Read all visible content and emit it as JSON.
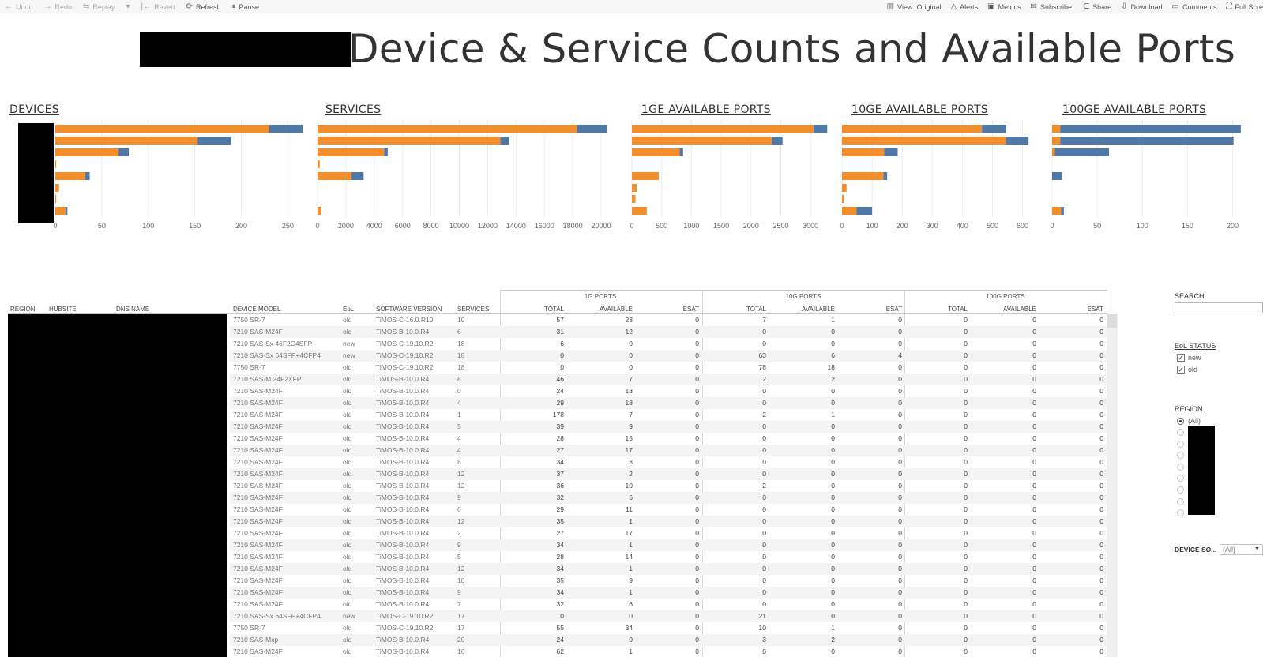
{
  "toolbar": {
    "left": [
      {
        "label": "Undo",
        "icon": "←",
        "disabled": true
      },
      {
        "label": "Redo",
        "icon": "→",
        "disabled": true
      },
      {
        "label": "Replay",
        "icon": "⇆",
        "disabled": true
      },
      {
        "label": "",
        "icon": "▾",
        "disabled": true
      },
      {
        "label": "Revert",
        "icon": "|←",
        "disabled": true
      },
      {
        "label": "Refresh",
        "icon": "⟳",
        "disabled": false
      },
      {
        "label": "Pause",
        "icon": "⏸",
        "disabled": false
      }
    ],
    "right": [
      {
        "label": "View: Original",
        "icon": "▥"
      },
      {
        "label": "Alerts",
        "icon": "△"
      },
      {
        "label": "Metrics",
        "icon": "▣"
      },
      {
        "label": "Subscribe",
        "icon": "✉"
      },
      {
        "label": "Share",
        "icon": "⋲"
      },
      {
        "label": "Download",
        "icon": "⇩"
      },
      {
        "label": "Comments",
        "icon": "▭"
      },
      {
        "label": "Full Scre",
        "icon": "⛶"
      }
    ]
  },
  "title": "Device & Service Counts and Available Ports",
  "colors": {
    "orange": "#f28e2b",
    "blue": "#4e79a7",
    "grid": "#ececec"
  },
  "chart_data": [
    {
      "type": "bar",
      "title": "DEVICES",
      "orientation": "horizontal",
      "stacked": true,
      "xlim": [
        0,
        265
      ],
      "ticks": [
        0,
        50,
        100,
        150,
        200,
        250
      ],
      "series": [
        {
          "color": "#f28e2b",
          "values": [
            230,
            153,
            68,
            1,
            32,
            4,
            1,
            11
          ]
        },
        {
          "color": "#4e79a7",
          "values": [
            36,
            36,
            11,
            0,
            5,
            0,
            0,
            2
          ]
        }
      ]
    },
    {
      "type": "bar",
      "title": "SERVICES",
      "orientation": "horizontal",
      "stacked": true,
      "xlim": [
        0,
        20500
      ],
      "ticks": [
        0,
        2000,
        4000,
        6000,
        8000,
        10000,
        12000,
        14000,
        16000,
        18000,
        20000
      ],
      "series": [
        {
          "color": "#f28e2b",
          "values": [
            18300,
            12900,
            4700,
            150,
            2400,
            0,
            0,
            250
          ]
        },
        {
          "color": "#4e79a7",
          "values": [
            2100,
            600,
            250,
            0,
            850,
            0,
            0,
            0
          ]
        }
      ]
    },
    {
      "type": "bar",
      "title": "1GE AVAILABLE PORTS",
      "orientation": "horizontal",
      "stacked": true,
      "xlim": [
        0,
        3250
      ],
      "ticks": [
        0,
        500,
        1000,
        1500,
        2000,
        2500,
        3000
      ],
      "series": [
        {
          "color": "#f28e2b",
          "values": [
            3050,
            2350,
            800,
            0,
            450,
            80,
            60,
            250
          ]
        },
        {
          "color": "#4e79a7",
          "values": [
            230,
            180,
            60,
            0,
            0,
            0,
            0,
            0
          ]
        }
      ]
    },
    {
      "type": "bar",
      "title": "10GE AVAILABLE PORTS",
      "orientation": "horizontal",
      "stacked": true,
      "xlim": [
        0,
        630
      ],
      "ticks": [
        0,
        100,
        200,
        300,
        400,
        500,
        600
      ],
      "series": [
        {
          "color": "#f28e2b",
          "values": [
            465,
            545,
            140,
            0,
            138,
            15,
            6,
            48
          ]
        },
        {
          "color": "#4e79a7",
          "values": [
            80,
            75,
            45,
            0,
            12,
            0,
            0,
            52
          ]
        }
      ]
    },
    {
      "type": "bar",
      "title": "100GE AVAILABLE PORTS",
      "orientation": "horizontal",
      "stacked": true,
      "xlim": [
        0,
        210
      ],
      "ticks": [
        0,
        50,
        100,
        150,
        200
      ],
      "series": [
        {
          "color": "#f28e2b",
          "values": [
            9,
            9,
            3,
            0,
            0,
            0,
            0,
            10
          ]
        },
        {
          "color": "#4e79a7",
          "values": [
            200,
            192,
            60,
            0,
            11,
            0,
            0,
            3
          ]
        }
      ]
    }
  ],
  "table": {
    "groups": [
      "1G PORTS",
      "10G PORTS",
      "100G PORTS"
    ],
    "headers": [
      "REGION",
      "HUBSITE",
      "DNS NAME",
      "DEVICE MODEL",
      "EoL",
      "SOFTWARE VERSION",
      "SERVICES",
      "TOTAL",
      "AVAILABLE",
      "ESAT",
      "TOTAL",
      "AVAILABLE",
      "ESAT",
      "TOTAL",
      "AVAILABLE",
      "ESAT"
    ],
    "rows": [
      [
        "7750 SR-7",
        "old",
        "TiMOS-C-16.0.R10",
        "10",
        "57",
        "23",
        "0",
        "7",
        "1",
        "0",
        "0",
        "0",
        "0"
      ],
      [
        "7210 SAS-M24F",
        "old",
        "TiMOS-B-10.0.R4",
        "6",
        "31",
        "12",
        "0",
        "0",
        "0",
        "0",
        "0",
        "0",
        "0"
      ],
      [
        "7210 SAS-Sx 46F2C4SFP+",
        "new",
        "TiMOS-C-19.10.R2",
        "18",
        "6",
        "0",
        "0",
        "0",
        "0",
        "0",
        "0",
        "0",
        "0"
      ],
      [
        "7210 SAS-Sx 64SFP+4CFP4",
        "new",
        "TiMOS-C-19.10.R2",
        "18",
        "0",
        "0",
        "0",
        "63",
        "6",
        "4",
        "0",
        "0",
        "0"
      ],
      [
        "7750 SR-7",
        "old",
        "TiMOS-C-19.10.R2",
        "18",
        "0",
        "0",
        "0",
        "78",
        "18",
        "0",
        "0",
        "0",
        "0"
      ],
      [
        "7210 SAS-M 24F2XFP",
        "old",
        "TiMOS-B-10.0.R4",
        "8",
        "46",
        "7",
        "0",
        "2",
        "2",
        "0",
        "0",
        "0",
        "0"
      ],
      [
        "7210 SAS-M24F",
        "old",
        "TiMOS-B-10.0.R4",
        "0",
        "24",
        "18",
        "0",
        "0",
        "0",
        "0",
        "0",
        "0",
        "0"
      ],
      [
        "7210 SAS-M24F",
        "old",
        "TiMOS-B-10.0.R4",
        "4",
        "29",
        "18",
        "0",
        "0",
        "0",
        "0",
        "0",
        "0",
        "0"
      ],
      [
        "7210 SAS-M24F",
        "old",
        "TiMOS-B-10.0.R4",
        "1",
        "178",
        "7",
        "0",
        "2",
        "1",
        "0",
        "0",
        "0",
        "0"
      ],
      [
        "7210 SAS-M24F",
        "old",
        "TiMOS-B-10.0.R4",
        "5",
        "39",
        "9",
        "0",
        "0",
        "0",
        "0",
        "0",
        "0",
        "0"
      ],
      [
        "7210 SAS-M24F",
        "old",
        "TiMOS-B-10.0.R4",
        "4",
        "28",
        "15",
        "0",
        "0",
        "0",
        "0",
        "0",
        "0",
        "0"
      ],
      [
        "7210 SAS-M24F",
        "old",
        "TiMOS-B-10.0.R4",
        "4",
        "27",
        "17",
        "0",
        "0",
        "0",
        "0",
        "0",
        "0",
        "0"
      ],
      [
        "7210 SAS-M24F",
        "old",
        "TiMOS-B-10.0.R4",
        "8",
        "34",
        "3",
        "0",
        "0",
        "0",
        "0",
        "0",
        "0",
        "0"
      ],
      [
        "7210 SAS-M24F",
        "old",
        "TiMOS-B-10.0.R4",
        "12",
        "37",
        "2",
        "0",
        "0",
        "0",
        "0",
        "0",
        "0",
        "0"
      ],
      [
        "7210 SAS-M24F",
        "old",
        "TiMOS-B-10.0.R4",
        "12",
        "36",
        "10",
        "0",
        "2",
        "0",
        "0",
        "0",
        "0",
        "0"
      ],
      [
        "7210 SAS-M24F",
        "old",
        "TiMOS-B-10.0.R4",
        "9",
        "32",
        "6",
        "0",
        "0",
        "0",
        "0",
        "0",
        "0",
        "0"
      ],
      [
        "7210 SAS-M24F",
        "old",
        "TiMOS-B-10.0.R4",
        "6",
        "29",
        "11",
        "0",
        "0",
        "0",
        "0",
        "0",
        "0",
        "0"
      ],
      [
        "7210 SAS-M24F",
        "old",
        "TiMOS-B-10.0.R4",
        "12",
        "35",
        "1",
        "0",
        "0",
        "0",
        "0",
        "0",
        "0",
        "0"
      ],
      [
        "7210 SAS-M24F",
        "old",
        "TiMOS-B-10.0.R4",
        "2",
        "27",
        "17",
        "0",
        "0",
        "0",
        "0",
        "0",
        "0",
        "0"
      ],
      [
        "7210 SAS-M24F",
        "old",
        "TiMOS-B-10.0.R4",
        "9",
        "34",
        "1",
        "0",
        "0",
        "0",
        "0",
        "0",
        "0",
        "0"
      ],
      [
        "7210 SAS-M24F",
        "old",
        "TiMOS-B-10.0.R4",
        "5",
        "28",
        "14",
        "0",
        "0",
        "0",
        "0",
        "0",
        "0",
        "0"
      ],
      [
        "7210 SAS-M24F",
        "old",
        "TiMOS-B-10.0.R4",
        "12",
        "34",
        "1",
        "0",
        "0",
        "0",
        "0",
        "0",
        "0",
        "0"
      ],
      [
        "7210 SAS-M24F",
        "old",
        "TiMOS-B-10.0.R4",
        "10",
        "35",
        "9",
        "0",
        "0",
        "0",
        "0",
        "0",
        "0",
        "0"
      ],
      [
        "7210 SAS-M24F",
        "old",
        "TiMOS-B-10.0.R4",
        "9",
        "34",
        "1",
        "0",
        "0",
        "0",
        "0",
        "0",
        "0",
        "0"
      ],
      [
        "7210 SAS-M24F",
        "old",
        "TiMOS-B-10.0.R4",
        "7",
        "32",
        "6",
        "0",
        "0",
        "0",
        "0",
        "0",
        "0",
        "0"
      ],
      [
        "7210 SAS-Sx 64SFP+4CFP4",
        "new",
        "TiMOS-C-19.10.R2",
        "17",
        "0",
        "0",
        "0",
        "21",
        "0",
        "0",
        "0",
        "0",
        "0"
      ],
      [
        "7750 SR-7",
        "old",
        "TiMOS-C-19.10.R2",
        "17",
        "55",
        "34",
        "0",
        "10",
        "1",
        "0",
        "0",
        "0",
        "0"
      ],
      [
        "7210 SAS-Mxp",
        "old",
        "TiMOS-B-10.0.R4",
        "20",
        "24",
        "0",
        "0",
        "3",
        "2",
        "0",
        "0",
        "0",
        "0"
      ],
      [
        "7210 SAS-M24F",
        "old",
        "TiMOS-B-10.0.R4",
        "16",
        "62",
        "1",
        "0",
        "0",
        "0",
        "0",
        "0",
        "0",
        "0"
      ]
    ]
  },
  "filters": {
    "search_label": "SEARCH",
    "search_value": "",
    "eol_label": "EoL STATUS",
    "eol_options": [
      {
        "label": "new",
        "checked": true
      },
      {
        "label": "old",
        "checked": true
      }
    ],
    "region_label": "REGION",
    "region_selected": "(All)",
    "device_label": "DEVICE SO...",
    "device_value": "(All)"
  }
}
